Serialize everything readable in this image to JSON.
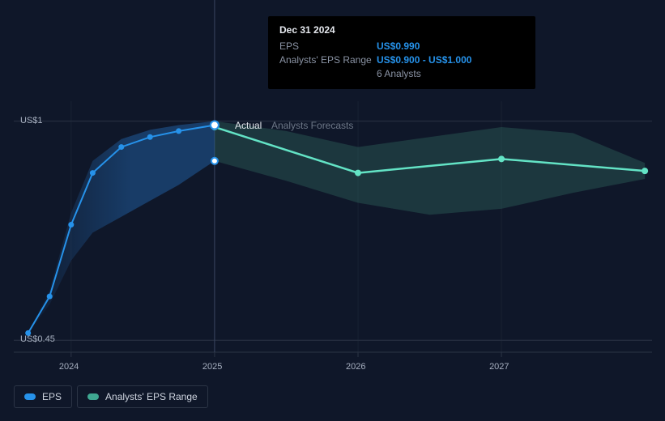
{
  "chart": {
    "background_color": "#0f1729",
    "divider_color": "#2b3445",
    "text_color": "#a7b0c0",
    "section_labels": {
      "actual": "Actual",
      "forecasts": "Analysts Forecasts"
    },
    "x_axis": {
      "ticks": [
        2024,
        2025,
        2026,
        2027
      ],
      "range": [
        2023.6,
        2028.05
      ]
    },
    "y_axis": {
      "ticks": [
        {
          "v": 0.45,
          "label": "US$0.45"
        },
        {
          "v": 1.0,
          "label": "US$1"
        }
      ],
      "range": [
        0.42,
        1.05
      ]
    },
    "divider_x": 2025.0,
    "series": {
      "eps_actual": {
        "color": "#2692ea",
        "line_width": 2,
        "marker_color": "#2692ea",
        "marker_radius": 3.5,
        "points": [
          {
            "x": 2023.7,
            "y": 0.468
          },
          {
            "x": 2023.85,
            "y": 0.56
          },
          {
            "x": 2024.0,
            "y": 0.74
          },
          {
            "x": 2024.15,
            "y": 0.87
          },
          {
            "x": 2024.35,
            "y": 0.935
          },
          {
            "x": 2024.55,
            "y": 0.96
          },
          {
            "x": 2024.75,
            "y": 0.975
          },
          {
            "x": 2025.0,
            "y": 0.99
          }
        ]
      },
      "eps_forecast": {
        "color": "#63e3c5",
        "line_width": 2.5,
        "marker_color": "#63e3c5",
        "marker_radius": 4,
        "points": [
          {
            "x": 2025.0,
            "y": 0.985
          },
          {
            "x": 2026.0,
            "y": 0.87
          },
          {
            "x": 2027.0,
            "y": 0.905
          },
          {
            "x": 2028.0,
            "y": 0.875
          }
        ]
      },
      "range_actual": {
        "fill": "#1f5a9a",
        "fill_opacity": 0.55,
        "upper": [
          {
            "x": 2023.7,
            "y": 0.468
          },
          {
            "x": 2023.85,
            "y": 0.575
          },
          {
            "x": 2024.0,
            "y": 0.77
          },
          {
            "x": 2024.15,
            "y": 0.9
          },
          {
            "x": 2024.35,
            "y": 0.955
          },
          {
            "x": 2024.55,
            "y": 0.978
          },
          {
            "x": 2024.75,
            "y": 0.99
          },
          {
            "x": 2025.0,
            "y": 1.0
          }
        ],
        "lower": [
          {
            "x": 2025.0,
            "y": 0.9
          },
          {
            "x": 2024.75,
            "y": 0.84
          },
          {
            "x": 2024.55,
            "y": 0.8
          },
          {
            "x": 2024.35,
            "y": 0.76
          },
          {
            "x": 2024.15,
            "y": 0.72
          },
          {
            "x": 2024.0,
            "y": 0.65
          },
          {
            "x": 2023.85,
            "y": 0.54
          },
          {
            "x": 2023.7,
            "y": 0.468
          }
        ],
        "current_marker": {
          "x": 2025.0,
          "y": 0.9
        }
      },
      "range_forecast": {
        "fill": "#2f6a60",
        "fill_opacity": 0.4,
        "upper": [
          {
            "x": 2025.0,
            "y": 1.0
          },
          {
            "x": 2025.5,
            "y": 0.975
          },
          {
            "x": 2026.0,
            "y": 0.935
          },
          {
            "x": 2026.5,
            "y": 0.96
          },
          {
            "x": 2027.0,
            "y": 0.985
          },
          {
            "x": 2027.5,
            "y": 0.97
          },
          {
            "x": 2028.0,
            "y": 0.895
          }
        ],
        "lower": [
          {
            "x": 2028.0,
            "y": 0.855
          },
          {
            "x": 2027.5,
            "y": 0.82
          },
          {
            "x": 2027.0,
            "y": 0.78
          },
          {
            "x": 2026.5,
            "y": 0.765
          },
          {
            "x": 2026.0,
            "y": 0.795
          },
          {
            "x": 2025.5,
            "y": 0.85
          },
          {
            "x": 2025.0,
            "y": 0.9
          }
        ]
      }
    }
  },
  "tooltip": {
    "title": "Dec 31 2024",
    "eps_label": "EPS",
    "eps_value": "US$0.990",
    "range_label": "Analysts' EPS Range",
    "range_value": "US$0.900 - US$1.000",
    "analysts": "6 Analysts"
  },
  "legend": {
    "eps": {
      "label": "EPS",
      "color": "#2692ea"
    },
    "range": {
      "label": "Analysts' EPS Range",
      "color": "#3fa892"
    }
  }
}
